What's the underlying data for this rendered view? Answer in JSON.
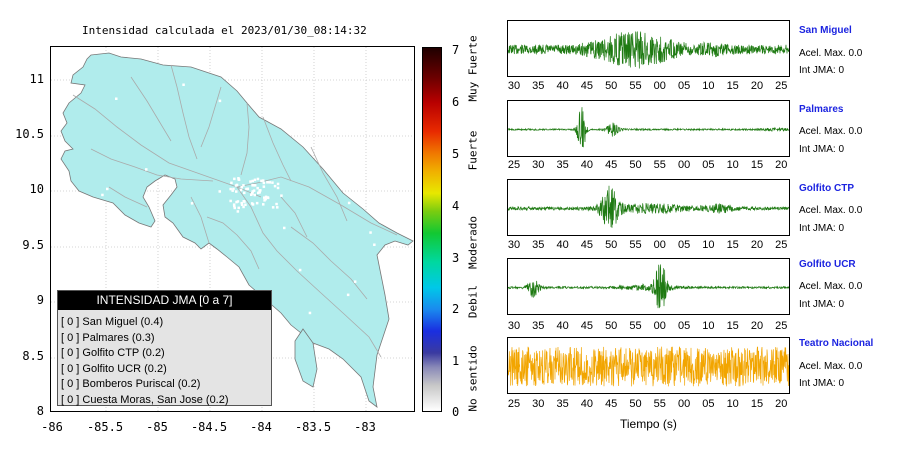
{
  "map": {
    "title": "Intensidad calculada el 2023/01/30_08:14:32",
    "y_ticks": [
      "11",
      "10.5",
      "10",
      "9.5",
      "9",
      "8.5",
      "8"
    ],
    "x_ticks": [
      "-86",
      "-85.5",
      "-85",
      "-84.5",
      "-84",
      "-83.5",
      "-83"
    ],
    "land_color": "#b0ecec",
    "road_color": "#aaaaaa"
  },
  "legend": {
    "title": "INTENSIDAD JMA [0 a 7]",
    "items": [
      "[ 0 ] San Miguel (0.4)",
      "[ 0 ] Palmares (0.3)",
      "[ 0 ] Golfito CTP (0.2)",
      "[ 0 ] Golfito UCR (0.2)",
      "[ 0 ] Bomberos Puriscal (0.2)",
      "[ 0 ] Cuesta Moras, San Jose (0.2)"
    ]
  },
  "colorbar": {
    "ticks": [
      "7",
      "6",
      "5",
      "4",
      "3",
      "2",
      "1",
      "0"
    ],
    "labels": [
      "Muy Fuerte",
      "Fuerte",
      "Moderado",
      "Debil",
      "No sentido"
    ]
  },
  "waveforms": [
    {
      "name": "San Miguel",
      "acel": "Acel. Max. 0.0",
      "int": "Int JMA: 0",
      "color": "#1e7a12",
      "ticks": [
        "30",
        "35",
        "40",
        "45",
        "50",
        "55",
        "00",
        "05",
        "10",
        "15",
        "20",
        "25"
      ]
    },
    {
      "name": "Palmares",
      "acel": "Acel. Max. 0.0",
      "int": "Int JMA: 0",
      "color": "#1e7a12",
      "ticks": [
        "25",
        "30",
        "35",
        "40",
        "45",
        "50",
        "55",
        "00",
        "05",
        "10",
        "15",
        "20"
      ]
    },
    {
      "name": "Golfito CTP",
      "acel": "Acel. Max. 0.0",
      "int": "Int JMA: 0",
      "color": "#1e7a12",
      "ticks": [
        "30",
        "35",
        "40",
        "45",
        "50",
        "55",
        "00",
        "05",
        "10",
        "15",
        "20",
        "25"
      ]
    },
    {
      "name": "Golfito UCR",
      "acel": "Acel. Max. 0.0",
      "int": "Int JMA: 0",
      "color": "#1e7a12",
      "ticks": [
        "30",
        "35",
        "40",
        "45",
        "50",
        "55",
        "00",
        "05",
        "10",
        "15",
        "20",
        "25"
      ]
    },
    {
      "name": "Teatro Nacional",
      "acel": "Acel. Max. 0.0",
      "int": "Int JMA: 0",
      "color": "#f2a500",
      "ticks": [
        "25",
        "30",
        "35",
        "40",
        "45",
        "50",
        "55",
        "00",
        "05",
        "10",
        "15",
        "20"
      ]
    }
  ],
  "xaxis_label": "Tiempo (s)"
}
